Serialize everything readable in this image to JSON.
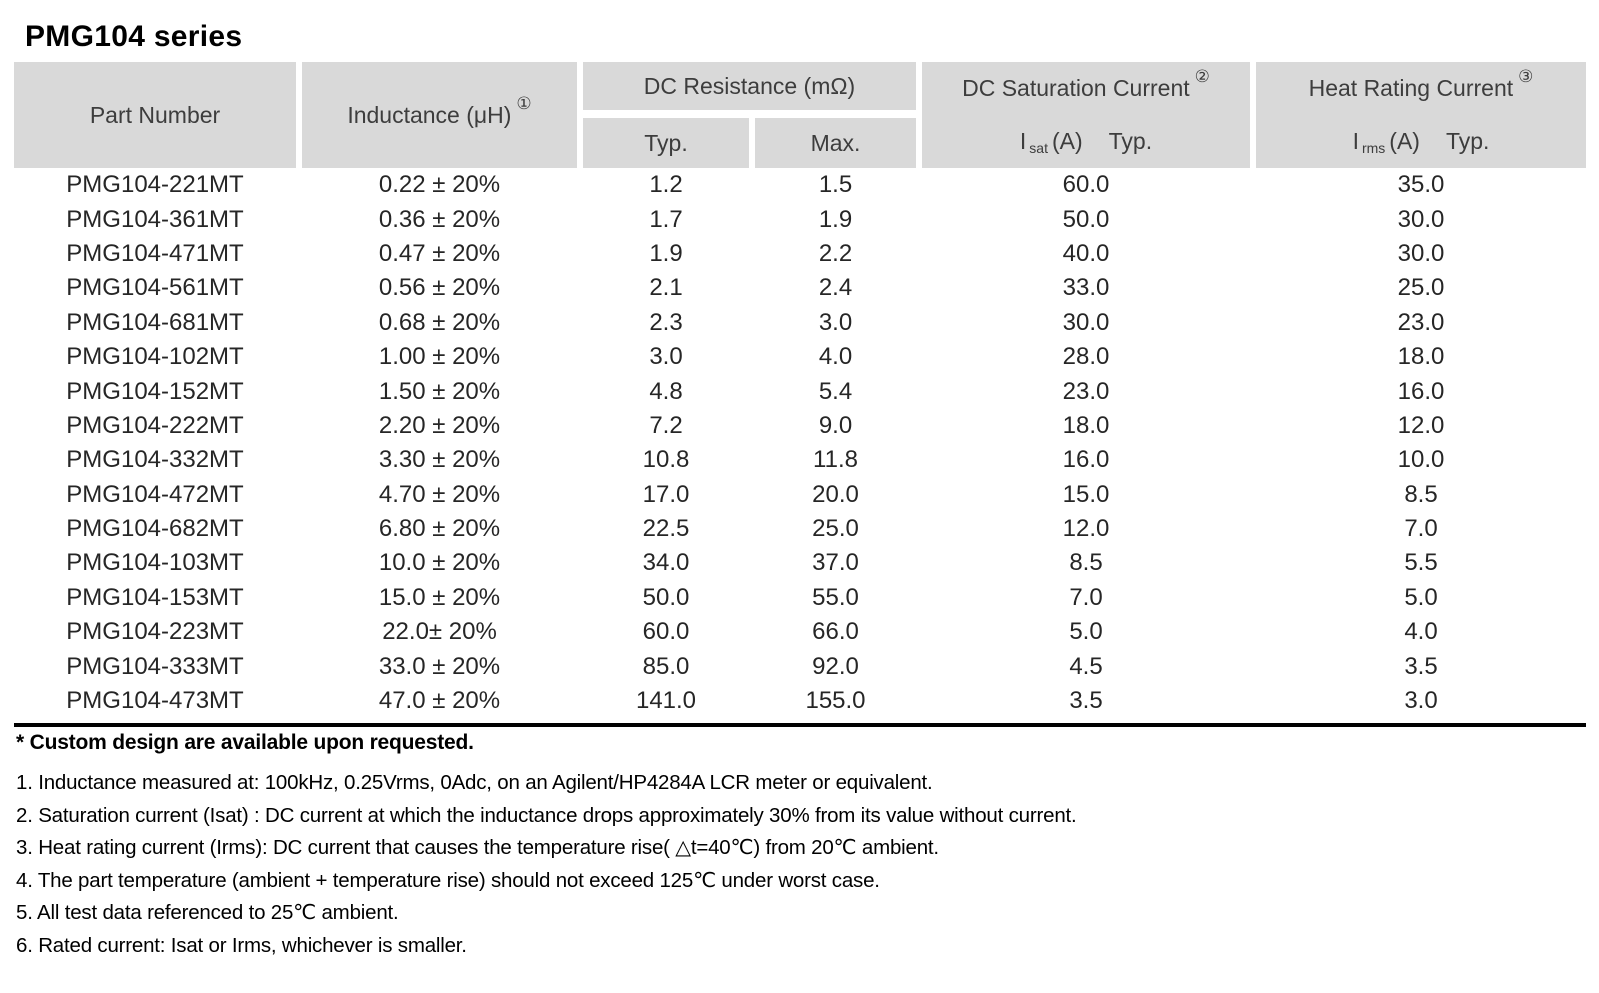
{
  "page": {
    "title": "PMG104 series"
  },
  "colors": {
    "header_bg": "#d9d9d9",
    "rule": "#000000",
    "header_text": "#3d3d3d",
    "body_text": "#262626"
  },
  "table": {
    "headers": {
      "part_number": "Part Number",
      "inductance": "Inductance (μH)",
      "inductance_note": "①",
      "dc_resistance": "DC Resistance (mΩ)",
      "typ": "Typ.",
      "max": "Max.",
      "dc_saturation": "DC Saturation Current",
      "dc_saturation_note": "②",
      "sat_row": {
        "symbol": "I",
        "sub": "sat",
        "unit": "(A)",
        "typ": "Typ."
      },
      "heat_rating": "Heat Rating Current",
      "heat_rating_note": "③",
      "heat_row": {
        "symbol": "I",
        "sub": "rms",
        "unit": "(A)",
        "typ": "Typ."
      }
    },
    "rows": [
      {
        "part": "PMG104-221MT",
        "inductance": "0.22 ± 20%",
        "typ": "1.2",
        "max": "1.5",
        "isat": "60.0",
        "irms": "35.0"
      },
      {
        "part": "PMG104-361MT",
        "inductance": "0.36 ± 20%",
        "typ": "1.7",
        "max": "1.9",
        "isat": "50.0",
        "irms": "30.0"
      },
      {
        "part": "PMG104-471MT",
        "inductance": "0.47 ± 20%",
        "typ": "1.9",
        "max": "2.2",
        "isat": "40.0",
        "irms": "30.0"
      },
      {
        "part": "PMG104-561MT",
        "inductance": "0.56 ± 20%",
        "typ": "2.1",
        "max": "2.4",
        "isat": "33.0",
        "irms": "25.0"
      },
      {
        "part": "PMG104-681MT",
        "inductance": "0.68 ± 20%",
        "typ": "2.3",
        "max": "3.0",
        "isat": "30.0",
        "irms": "23.0"
      },
      {
        "part": "PMG104-102MT",
        "inductance": "1.00 ± 20%",
        "typ": "3.0",
        "max": "4.0",
        "isat": "28.0",
        "irms": "18.0"
      },
      {
        "part": "PMG104-152MT",
        "inductance": "1.50 ± 20%",
        "typ": "4.8",
        "max": "5.4",
        "isat": "23.0",
        "irms": "16.0"
      },
      {
        "part": "PMG104-222MT",
        "inductance": "2.20 ± 20%",
        "typ": "7.2",
        "max": "9.0",
        "isat": "18.0",
        "irms": "12.0"
      },
      {
        "part": "PMG104-332MT",
        "inductance": "3.30 ± 20%",
        "typ": "10.8",
        "max": "11.8",
        "isat": "16.0",
        "irms": "10.0"
      },
      {
        "part": "PMG104-472MT",
        "inductance": "4.70 ± 20%",
        "typ": "17.0",
        "max": "20.0",
        "isat": "15.0",
        "irms": "8.5"
      },
      {
        "part": "PMG104-682MT",
        "inductance": "6.80 ± 20%",
        "typ": "22.5",
        "max": "25.0",
        "isat": "12.0",
        "irms": "7.0"
      },
      {
        "part": "PMG104-103MT",
        "inductance": "10.0 ± 20%",
        "typ": "34.0",
        "max": "37.0",
        "isat": "8.5",
        "irms": "5.5"
      },
      {
        "part": "PMG104-153MT",
        "inductance": "15.0 ± 20%",
        "typ": "50.0",
        "max": "55.0",
        "isat": "7.0",
        "irms": "5.0"
      },
      {
        "part": "PMG104-223MT",
        "inductance": "22.0± 20%",
        "typ": "60.0",
        "max": "66.0",
        "isat": "5.0",
        "irms": "4.0"
      },
      {
        "part": "PMG104-333MT",
        "inductance": "33.0 ± 20%",
        "typ": "85.0",
        "max": "92.0",
        "isat": "4.5",
        "irms": "3.5"
      },
      {
        "part": "PMG104-473MT",
        "inductance": "47.0 ± 20%",
        "typ": "141.0",
        "max": "155.0",
        "isat": "3.5",
        "irms": "3.0"
      }
    ]
  },
  "notes": {
    "custom": "* Custom design are available upon requested.",
    "items": [
      "1. Inductance measured at: 100kHz, 0.25Vrms, 0Adc, on an Agilent/HP4284A LCR meter or equivalent.",
      "2. Saturation current (Isat) : DC current at which the inductance drops approximately 30% from its value without current.",
      "3. Heat rating current (Irms): DC current that causes the temperature rise( △t=40℃) from 20℃ ambient.",
      "4. The part temperature (ambient + temperature rise) should not exceed 125℃ under worst case.",
      "5. All test data referenced to 25℃ ambient.",
      "6. Rated current: Isat or Irms, whichever is smaller."
    ]
  }
}
